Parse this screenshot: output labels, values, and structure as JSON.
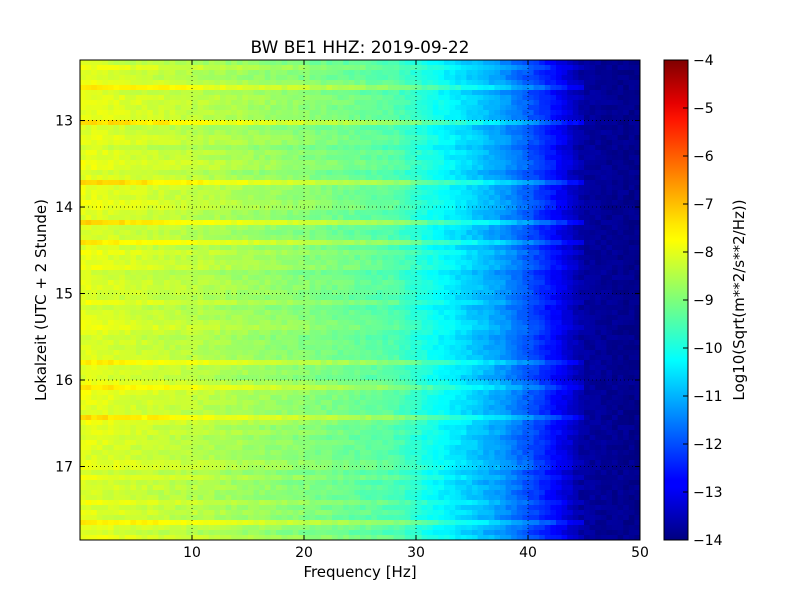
{
  "chart_data": {
    "type": "heatmap",
    "title": "BW BE1 HHZ: 2019-09-22",
    "xlabel": "Frequency [Hz]",
    "ylabel": "Lokalzeit (UTC + 2 Stunde)",
    "colorbar_label": "Log10(Sqrt(m**2/s**2/Hz))",
    "colormap": "jet",
    "xlim": [
      0,
      50
    ],
    "ylim_hours": [
      12.3,
      17.85
    ],
    "y_inverted": true,
    "clim": [
      -14,
      -4
    ],
    "grid": "dotted",
    "x_ticks": [
      {
        "value": 10,
        "label": "10"
      },
      {
        "value": 20,
        "label": "20"
      },
      {
        "value": 30,
        "label": "30"
      },
      {
        "value": 40,
        "label": "40"
      },
      {
        "value": 50,
        "label": "50"
      }
    ],
    "y_ticks": [
      {
        "value": 13,
        "label": "13"
      },
      {
        "value": 14,
        "label": "14"
      },
      {
        "value": 15,
        "label": "15"
      },
      {
        "value": 16,
        "label": "16"
      },
      {
        "value": 17,
        "label": "17"
      }
    ],
    "colorbar_ticks": [
      {
        "value": -4,
        "label": "−4"
      },
      {
        "value": -5,
        "label": "−5"
      },
      {
        "value": -6,
        "label": "−6"
      },
      {
        "value": -7,
        "label": "−7"
      },
      {
        "value": -8,
        "label": "−8"
      },
      {
        "value": -9,
        "label": "−9"
      },
      {
        "value": -10,
        "label": "−10"
      },
      {
        "value": -11,
        "label": "−11"
      },
      {
        "value": -12,
        "label": "−12"
      },
      {
        "value": -13,
        "label": "−13"
      },
      {
        "value": -14,
        "label": "−14"
      }
    ],
    "frequency_profile": [
      {
        "hz": 0,
        "value": -8.0
      },
      {
        "hz": 10,
        "value": -8.4
      },
      {
        "hz": 20,
        "value": -8.9
      },
      {
        "hz": 28,
        "value": -9.4
      },
      {
        "hz": 31,
        "value": -10.0
      },
      {
        "hz": 35,
        "value": -10.7
      },
      {
        "hz": 38,
        "value": -11.3
      },
      {
        "hz": 41,
        "value": -12.2
      },
      {
        "hz": 43,
        "value": -12.9
      },
      {
        "hz": 45,
        "value": -13.7
      },
      {
        "hz": 50,
        "value": -13.9
      }
    ],
    "strong_bands_hours": [
      12.62,
      13.02,
      13.72,
      14.2,
      14.4,
      15.78,
      16.08,
      16.45,
      17.67
    ]
  }
}
